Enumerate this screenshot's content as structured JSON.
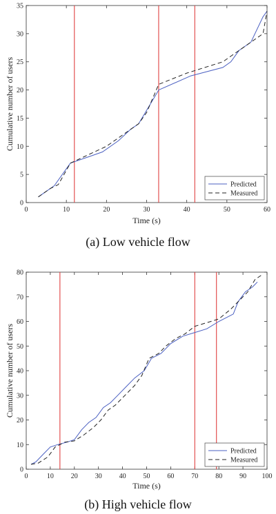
{
  "chart_data": [
    {
      "type": "line",
      "caption": "(a) Low vehicle flow",
      "xlabel": "Time (s)",
      "ylabel": "Cumulative number of users",
      "xlim": [
        0,
        60
      ],
      "ylim": [
        0,
        35
      ],
      "xticks": [
        0,
        10,
        20,
        30,
        40,
        50,
        60
      ],
      "yticks": [
        0,
        5,
        10,
        15,
        20,
        25,
        30,
        35
      ],
      "grid": false,
      "legend_position": "bottom-right",
      "vertical_lines": [
        12,
        33,
        42
      ],
      "series": [
        {
          "name": "Predicted",
          "style": "solid",
          "color": "#4a5fc1",
          "x": [
            3,
            7,
            11,
            19,
            23,
            26,
            28,
            33,
            41,
            49,
            51,
            53,
            56,
            59,
            60
          ],
          "y": [
            1,
            3,
            7,
            9,
            11,
            13,
            14,
            20,
            22.5,
            24,
            25,
            27,
            28.5,
            33,
            34
          ]
        },
        {
          "name": "Measured",
          "style": "dashed",
          "color": "#222222",
          "x": [
            3,
            6,
            8,
            11,
            20,
            23,
            26,
            28,
            30,
            33,
            40,
            49,
            51,
            53,
            57,
            59,
            60
          ],
          "y": [
            1,
            2.5,
            3.2,
            7,
            10,
            11.5,
            13,
            14,
            16,
            21,
            23,
            25,
            26,
            27,
            29,
            30,
            34
          ]
        }
      ]
    },
    {
      "type": "line",
      "caption": "(b) High vehicle flow",
      "xlabel": "Time (s)",
      "ylabel": "Cumulative number of users",
      "xlim": [
        0,
        100
      ],
      "ylim": [
        0,
        80
      ],
      "xticks": [
        0,
        10,
        20,
        30,
        40,
        50,
        60,
        70,
        80,
        90,
        100
      ],
      "yticks": [
        0,
        10,
        20,
        30,
        40,
        50,
        60,
        70,
        80
      ],
      "grid": false,
      "legend_position": "bottom-right",
      "vertical_lines": [
        14,
        70,
        79
      ],
      "series": [
        {
          "name": "Predicted",
          "style": "solid",
          "color": "#4a5fc1",
          "x": [
            2,
            4,
            7,
            10,
            13,
            17,
            20,
            23,
            26,
            29,
            32,
            35,
            38,
            41,
            45,
            49,
            52,
            56,
            60,
            65,
            70,
            75,
            80,
            86,
            88,
            91,
            94,
            96
          ],
          "y": [
            2,
            3,
            6,
            9,
            10,
            11,
            12,
            16,
            19,
            21,
            25,
            27,
            30,
            33,
            37,
            40,
            45,
            47,
            51,
            54,
            55.5,
            57,
            60,
            63,
            68,
            72,
            74,
            76
          ]
        },
        {
          "name": "Measured",
          "style": "dashed",
          "color": "#222222",
          "x": [
            2,
            5,
            9,
            12,
            16,
            20,
            24,
            28,
            31,
            34,
            37,
            41,
            45,
            48,
            51,
            55,
            58,
            62,
            66,
            70,
            75,
            80,
            85,
            88,
            92,
            95,
            98
          ],
          "y": [
            2,
            2.5,
            5,
            9,
            11,
            11.5,
            14,
            17,
            20,
            24,
            26,
            30,
            34,
            38,
            45,
            47,
            50,
            53,
            55,
            58,
            59.5,
            61,
            65,
            68,
            72,
            77,
            79
          ]
        }
      ]
    }
  ]
}
